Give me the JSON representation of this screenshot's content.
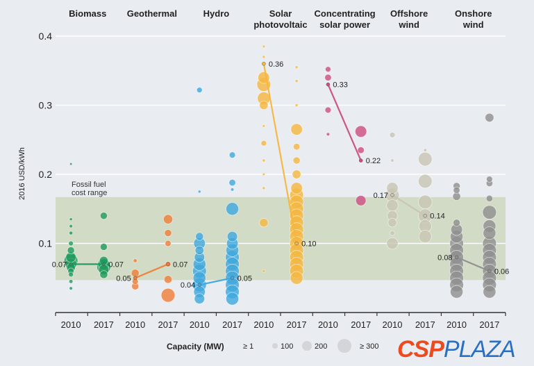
{
  "chart_data": {
    "type": "scatter",
    "subtype": "bubble",
    "ylabel": "2016 USD/kWh",
    "ylim": [
      0,
      0.4
    ],
    "yticks": [
      "0.1",
      "0.2",
      "0.3",
      "0.4"
    ],
    "grid": true,
    "band": {
      "label_line1": "Fossil fuel",
      "label_line2": "cost range",
      "range": [
        0.047,
        0.167
      ],
      "color": "#c9d6b6"
    },
    "years": [
      "2010",
      "2017"
    ],
    "legend": {
      "title": "Capacity (MW)",
      "entries": [
        "≥ 1",
        "100",
        "200",
        "≥ 300"
      ],
      "placement": "bottom"
    },
    "categories": [
      {
        "name_line1": "Biomass",
        "name_line2": "",
        "color": "#1f9a5c",
        "median": [
          0.07,
          0.07
        ],
        "median_labels": [
          "0.07",
          "0.07"
        ],
        "points2010": [
          [
            0.215,
            1
          ],
          [
            0.135,
            3
          ],
          [
            0.125,
            5
          ],
          [
            0.115,
            8
          ],
          [
            0.1,
            20
          ],
          [
            0.09,
            60
          ],
          [
            0.08,
            150
          ],
          [
            0.075,
            300
          ],
          [
            0.07,
            200
          ],
          [
            0.065,
            100
          ],
          [
            0.06,
            40
          ],
          [
            0.055,
            20
          ],
          [
            0.045,
            10
          ],
          [
            0.035,
            5
          ]
        ],
        "points2017": [
          [
            0.14,
            60
          ],
          [
            0.095,
            60
          ],
          [
            0.075,
            100
          ],
          [
            0.07,
            200
          ],
          [
            0.066,
            300
          ],
          [
            0.062,
            150
          ],
          [
            0.055,
            80
          ]
        ]
      },
      {
        "name_line1": "Geothermal",
        "name_line2": "",
        "color": "#ef7d36",
        "median": [
          0.05,
          0.07
        ],
        "median_labels": [
          "0.05",
          "0.07"
        ],
        "points2010": [
          [
            0.075,
            10
          ],
          [
            0.057,
            80
          ],
          [
            0.045,
            40
          ],
          [
            0.038,
            60
          ]
        ],
        "points2017": [
          [
            0.135,
            120
          ],
          [
            0.115,
            60
          ],
          [
            0.1,
            40
          ],
          [
            0.07,
            30
          ],
          [
            0.048,
            80
          ],
          [
            0.025,
            300
          ]
        ]
      },
      {
        "name_line1": "Hydro",
        "name_line2": "",
        "color": "#3ea7dd",
        "median": [
          0.04,
          0.05
        ],
        "median_labels": [
          "0.04",
          "0.05"
        ],
        "points2010": [
          [
            0.322,
            30
          ],
          [
            0.175,
            3
          ],
          [
            0.11,
            80
          ],
          [
            0.1,
            200
          ],
          [
            0.09,
            100
          ],
          [
            0.08,
            150
          ],
          [
            0.07,
            250
          ],
          [
            0.06,
            300
          ],
          [
            0.05,
            250
          ],
          [
            0.04,
            300
          ],
          [
            0.03,
            200
          ],
          [
            0.02,
            150
          ]
        ],
        "points2017": [
          [
            0.228,
            40
          ],
          [
            0.188,
            50
          ],
          [
            0.178,
            5
          ],
          [
            0.15,
            250
          ],
          [
            0.11,
            150
          ],
          [
            0.1,
            200
          ],
          [
            0.09,
            250
          ],
          [
            0.08,
            300
          ],
          [
            0.07,
            300
          ],
          [
            0.06,
            300
          ],
          [
            0.05,
            300
          ],
          [
            0.04,
            300
          ],
          [
            0.03,
            300
          ],
          [
            0.02,
            250
          ]
        ]
      },
      {
        "name_line1": "Solar",
        "name_line2": "photovoltaic",
        "color": "#f5b63e",
        "median": [
          0.36,
          0.1
        ],
        "median_labels": [
          "0.36",
          "0.10"
        ],
        "points2010": [
          [
            0.385,
            2
          ],
          [
            0.37,
            2
          ],
          [
            0.36,
            5
          ],
          [
            0.34,
            200
          ],
          [
            0.33,
            300
          ],
          [
            0.31,
            250
          ],
          [
            0.3,
            100
          ],
          [
            0.27,
            2
          ],
          [
            0.245,
            30
          ],
          [
            0.22,
            3
          ],
          [
            0.2,
            2
          ],
          [
            0.18,
            3
          ],
          [
            0.13,
            100
          ],
          [
            0.06,
            3
          ]
        ],
        "points2017": [
          [
            0.355,
            3
          ],
          [
            0.335,
            3
          ],
          [
            0.3,
            3
          ],
          [
            0.265,
            200
          ],
          [
            0.24,
            50
          ],
          [
            0.22,
            60
          ],
          [
            0.2,
            100
          ],
          [
            0.18,
            200
          ],
          [
            0.17,
            300
          ],
          [
            0.16,
            300
          ],
          [
            0.15,
            300
          ],
          [
            0.14,
            300
          ],
          [
            0.13,
            300
          ],
          [
            0.12,
            300
          ],
          [
            0.11,
            300
          ],
          [
            0.1,
            300
          ],
          [
            0.09,
            300
          ],
          [
            0.08,
            300
          ],
          [
            0.07,
            300
          ],
          [
            0.06,
            300
          ],
          [
            0.05,
            250
          ]
        ]
      },
      {
        "name_line1": "Concentrating",
        "name_line2": "solar power",
        "color": "#cc4d80",
        "median": [
          0.33,
          0.22
        ],
        "median_labels": [
          "0.33",
          "0.22"
        ],
        "points2010": [
          [
            0.352,
            30
          ],
          [
            0.34,
            50
          ],
          [
            0.33,
            5
          ],
          [
            0.293,
            40
          ],
          [
            0.258,
            5
          ]
        ],
        "points2017": [
          [
            0.262,
            200
          ],
          [
            0.235,
            50
          ],
          [
            0.22,
            10
          ],
          [
            0.162,
            150
          ]
        ]
      },
      {
        "name_line1": "Offshore",
        "name_line2": "wind",
        "color": "#c8c5b3",
        "median": [
          0.17,
          0.14
        ],
        "median_labels": [
          "0.17",
          "0.14"
        ],
        "points2010": [
          [
            0.257,
            30
          ],
          [
            0.22,
            5
          ],
          [
            0.18,
            200
          ],
          [
            0.17,
            300
          ],
          [
            0.155,
            200
          ],
          [
            0.14,
            150
          ],
          [
            0.13,
            100
          ],
          [
            0.115,
            20
          ],
          [
            0.1,
            200
          ]
        ],
        "points2017": [
          [
            0.235,
            5
          ],
          [
            0.222,
            300
          ],
          [
            0.19,
            300
          ],
          [
            0.16,
            300
          ],
          [
            0.14,
            300
          ],
          [
            0.125,
            250
          ],
          [
            0.11,
            250
          ]
        ]
      },
      {
        "name_line1": "Onshore",
        "name_line2": "wind",
        "color": "#8e8e8e",
        "median": [
          0.08,
          0.06
        ],
        "median_labels": [
          "0.08",
          "0.06"
        ],
        "points2010": [
          [
            0.183,
            60
          ],
          [
            0.177,
            50
          ],
          [
            0.168,
            80
          ],
          [
            0.13,
            60
          ],
          [
            0.12,
            200
          ],
          [
            0.11,
            250
          ],
          [
            0.1,
            300
          ],
          [
            0.09,
            300
          ],
          [
            0.08,
            300
          ],
          [
            0.07,
            300
          ],
          [
            0.06,
            300
          ],
          [
            0.05,
            300
          ],
          [
            0.04,
            300
          ],
          [
            0.03,
            250
          ]
        ],
        "points2017": [
          [
            0.282,
            100
          ],
          [
            0.193,
            40
          ],
          [
            0.187,
            50
          ],
          [
            0.165,
            50
          ],
          [
            0.145,
            300
          ],
          [
            0.125,
            250
          ],
          [
            0.115,
            250
          ],
          [
            0.1,
            300
          ],
          [
            0.09,
            300
          ],
          [
            0.08,
            300
          ],
          [
            0.07,
            300
          ],
          [
            0.06,
            300
          ],
          [
            0.05,
            300
          ],
          [
            0.04,
            300
          ],
          [
            0.03,
            250
          ]
        ]
      }
    ]
  },
  "watermark": {
    "part1": "CSP",
    "part2": "PLAZA"
  }
}
